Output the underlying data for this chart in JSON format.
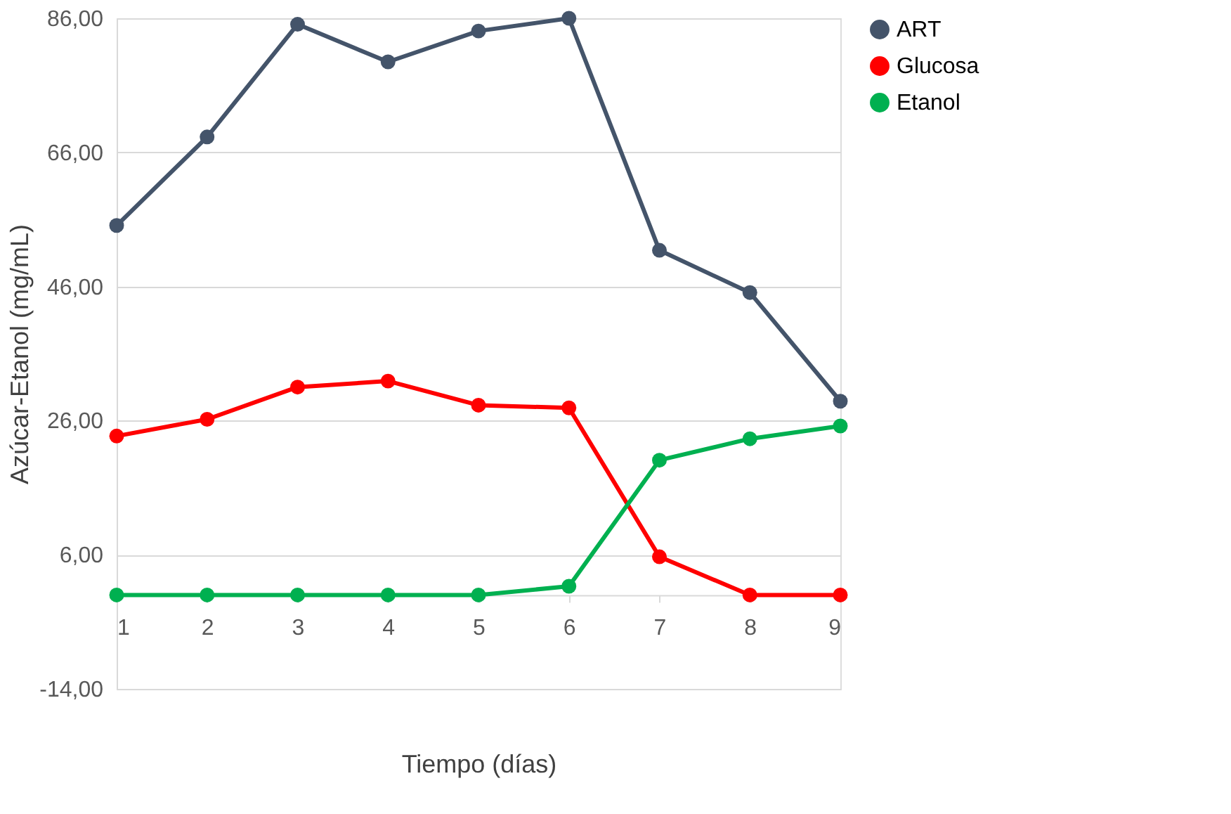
{
  "chart_data": {
    "type": "line",
    "xlabel": "Tiempo (días)",
    "ylabel": "Azúcar-Etanol  (mg/mL)",
    "categories": [
      "1",
      "2",
      "3",
      "4",
      "5",
      "6",
      "7",
      "8",
      "9"
    ],
    "series": [
      {
        "name": "ART",
        "color": "#44546a",
        "values": [
          55.1,
          68.3,
          85.1,
          79.5,
          84.1,
          86.0,
          51.4,
          45.1,
          28.9
        ]
      },
      {
        "name": "Glucosa",
        "color": "#ff0000",
        "values": [
          23.7,
          26.2,
          31.0,
          31.9,
          28.3,
          27.9,
          5.7,
          0,
          0
        ]
      },
      {
        "name": "Etanol",
        "color": "#00b050",
        "values": [
          0,
          0,
          0,
          0,
          0,
          1.3,
          20.1,
          23.3,
          25.2
        ]
      }
    ],
    "ylim": [
      -14,
      86
    ],
    "yticks": [
      {
        "value": -14,
        "label": "-14,00"
      },
      {
        "value": 6,
        "label": "6,00"
      },
      {
        "value": 26,
        "label": "26,00"
      },
      {
        "value": 46,
        "label": "46,00"
      },
      {
        "value": 66,
        "label": "66,00"
      },
      {
        "value": 86,
        "label": "86,00"
      }
    ],
    "grid": "y",
    "legend": "right",
    "marker": "circle",
    "line_style": "solid"
  }
}
